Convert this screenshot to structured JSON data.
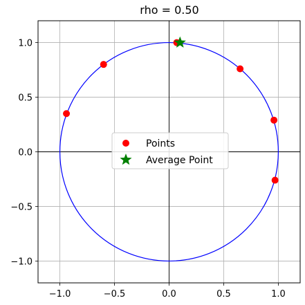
{
  "chart_data": {
    "type": "scatter",
    "title": "rho = 0.50",
    "xlabel": "",
    "ylabel": "",
    "xlim": [
      -1.2,
      1.2
    ],
    "ylim": [
      -1.2,
      1.2
    ],
    "xticks": [
      -1.0,
      -0.5,
      0.0,
      0.5,
      1.0
    ],
    "yticks": [
      -1.0,
      -0.5,
      0.0,
      0.5,
      1.0
    ],
    "xtick_labels": [
      "−1.0",
      "−0.5",
      "0.0",
      "0.5",
      "1.0"
    ],
    "ytick_labels": [
      "−1.0",
      "−0.5",
      "0.0",
      "0.5",
      "1.0"
    ],
    "grid": true,
    "unit_circle": {
      "radius": 1.0,
      "color": "#0000ff"
    },
    "axes_lines": {
      "x0": 0,
      "y0": 0,
      "color": "#000000"
    },
    "series": [
      {
        "name": "Points",
        "marker": "circle",
        "color": "#ff0000",
        "x": [
          -0.6,
          0.07,
          0.65,
          0.96,
          0.97,
          -0.94
        ],
        "y": [
          0.8,
          1.0,
          0.76,
          0.29,
          -0.26,
          0.35
        ]
      },
      {
        "name": "Average Point",
        "marker": "star",
        "color": "#008000",
        "x": [
          0.1
        ],
        "y": [
          1.0
        ]
      }
    ],
    "legend": {
      "position": "center"
    }
  }
}
